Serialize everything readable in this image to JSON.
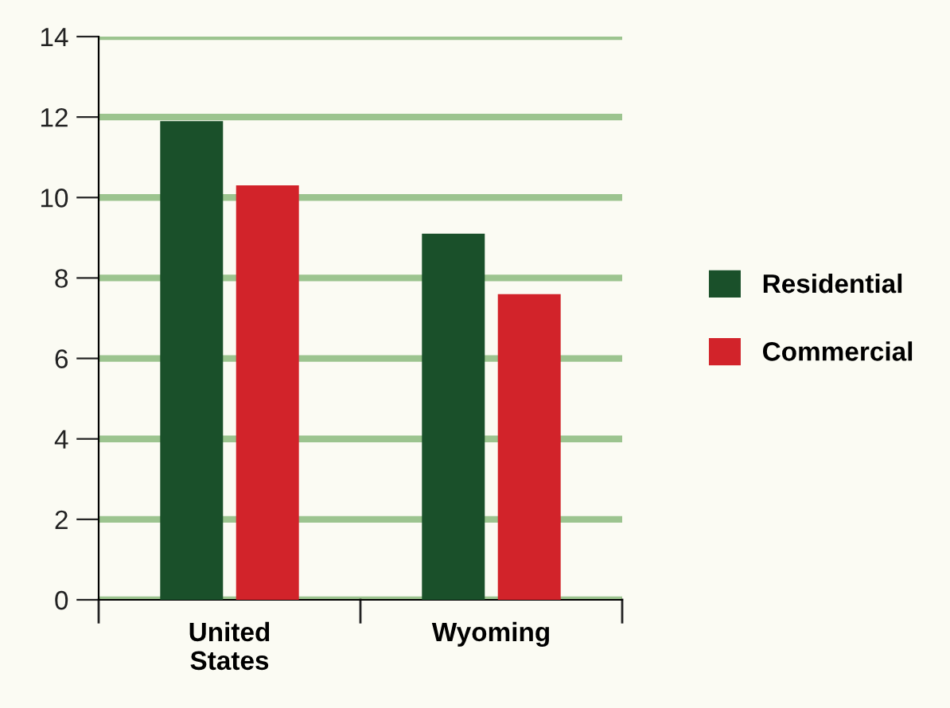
{
  "chart_data": {
    "type": "bar",
    "categories": [
      "United\nStates",
      "Wyoming"
    ],
    "series": [
      {
        "name": "Residential",
        "color": "#1a502a",
        "values": [
          11.9,
          9.1
        ]
      },
      {
        "name": "Commercial",
        "color": "#d2232a",
        "values": [
          10.3,
          7.6
        ]
      }
    ],
    "ylim": [
      0,
      14
    ],
    "yticks": [
      0,
      2,
      4,
      6,
      8,
      10,
      12,
      14
    ],
    "grid": "y",
    "legend": "right"
  }
}
